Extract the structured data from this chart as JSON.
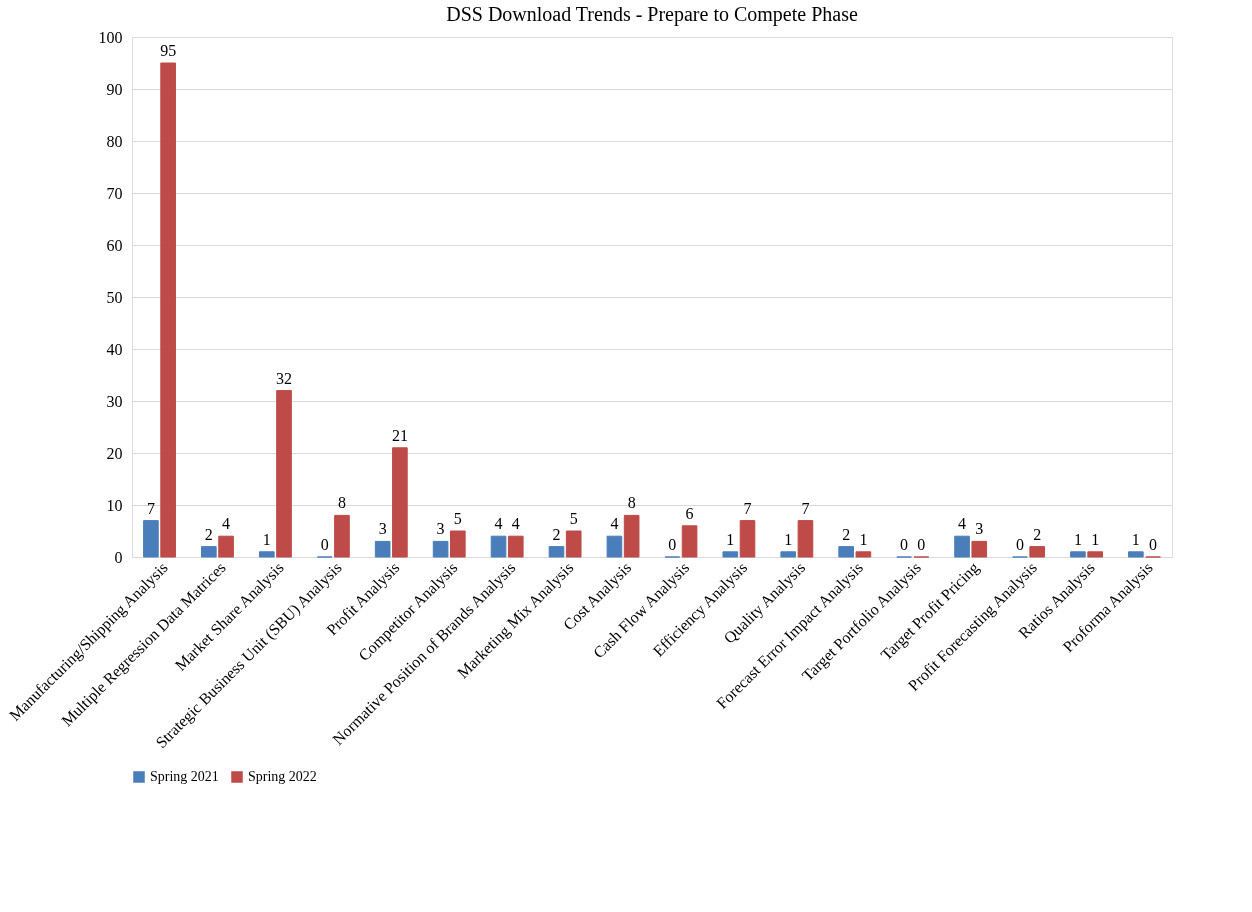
{
  "chart_data": {
    "type": "bar",
    "title": "DSS Download Trends - Prepare to Compete Phase",
    "categories": [
      "Manufacturing/Shipping Analysis",
      "Multiple Regression Data Matrices",
      "Market Share Analysis",
      "Strategic Business Unit (SBU) Analysis",
      "Profit Analysis",
      "Competitor Analysis",
      "Normative Position of Brands Analysis",
      "Marketing Mix Analysis",
      "Cost Analysis",
      "Cash Flow Analysis",
      "Efficiency Analysis",
      "Quality Analysis",
      "Forecast Error Impact Analysis",
      "Target Portfolio Analysis",
      "Target Profit Pricing",
      "Profit Forecasting Analysis",
      "Ratios Analysis",
      "Proforma Analysis"
    ],
    "series": [
      {
        "name": "Spring 2021",
        "color": "#4a7ebb",
        "values": [
          7,
          2,
          1,
          0,
          3,
          3,
          4,
          2,
          4,
          0,
          1,
          1,
          2,
          0,
          4,
          0,
          1,
          1
        ]
      },
      {
        "name": "Spring 2022",
        "color": "#be4b48",
        "values": [
          95,
          4,
          32,
          8,
          21,
          5,
          4,
          5,
          8,
          6,
          7,
          7,
          1,
          0,
          3,
          2,
          1,
          0
        ]
      }
    ],
    "ylim": [
      0,
      100
    ],
    "yticks": [
      0,
      10,
      20,
      30,
      40,
      50,
      60,
      70,
      80,
      90,
      100
    ],
    "grid": "y",
    "legend": "bottom",
    "data_labels": true
  }
}
